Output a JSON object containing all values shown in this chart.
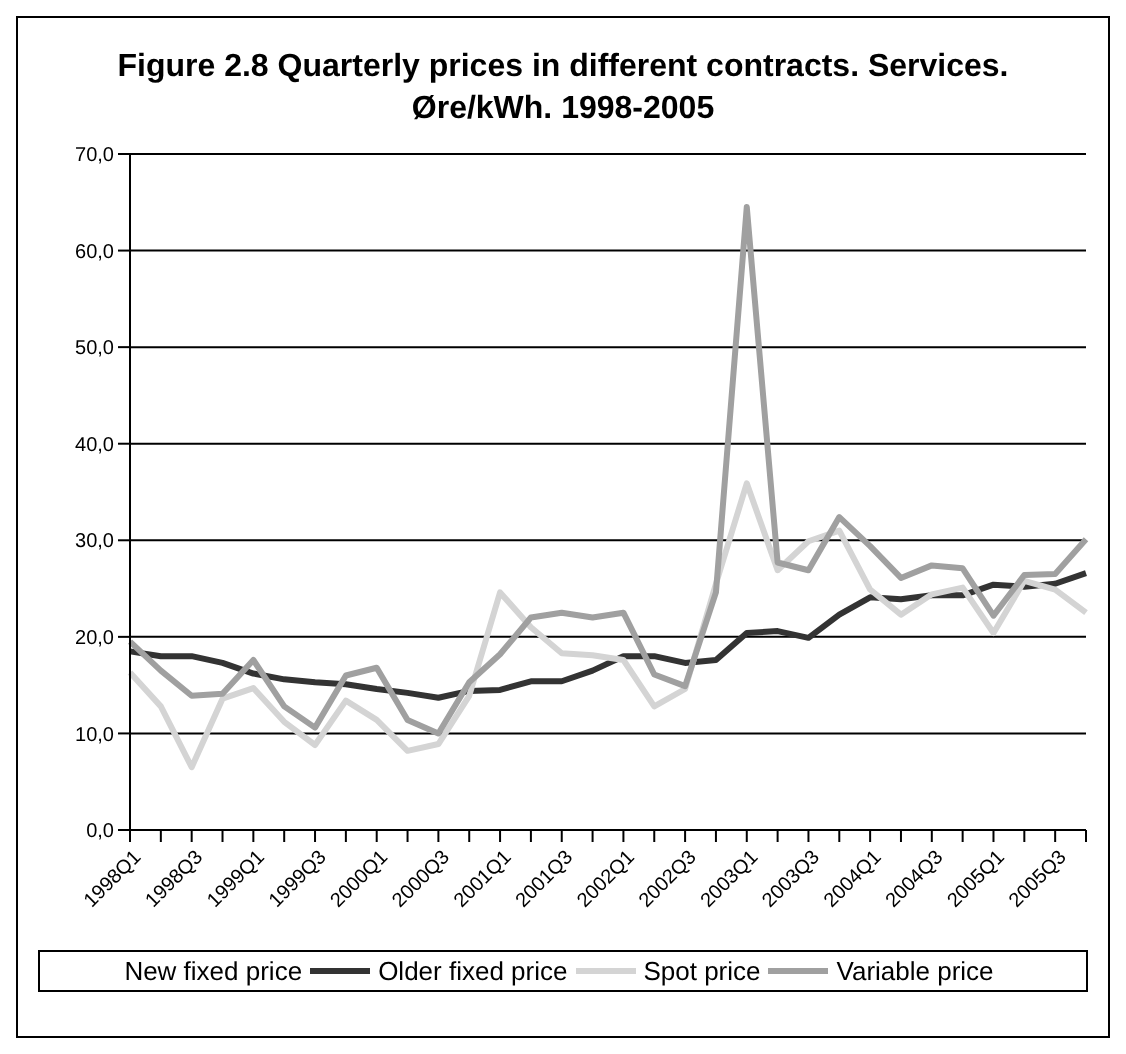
{
  "chart_data": {
    "type": "line",
    "title": "Figure 2.8 Quarterly prices in different contracts. Services. Øre/kWh. 1998-2005",
    "categories": [
      "1998Q1",
      null,
      "1998Q3",
      null,
      "1999Q1",
      null,
      "1999Q3",
      null,
      "2000Q1",
      null,
      "2000Q3",
      null,
      "2001Q1",
      null,
      "2001Q3",
      null,
      "2002Q1",
      null,
      "2002Q3",
      null,
      "2003Q1",
      null,
      "2003Q3",
      null,
      "2004Q1",
      null,
      "2004Q3",
      null,
      "2005Q1",
      null,
      "2005Q3",
      null
    ],
    "series": [
      {
        "name": "New fixed price",
        "values": [
          null,
          null,
          null,
          null,
          null,
          null,
          null,
          null,
          null,
          null,
          null,
          null,
          null,
          null,
          null,
          null,
          null,
          null,
          null,
          null,
          null,
          null,
          null,
          null,
          null,
          null,
          null,
          null,
          null,
          null,
          null,
          null
        ]
      },
      {
        "name": "Older fixed price",
        "color": "#333333",
        "values": [
          18.5,
          18.0,
          18.0,
          17.3,
          16.2,
          15.6,
          15.3,
          15.1,
          14.6,
          14.2,
          13.7,
          14.4,
          14.5,
          15.4,
          15.4,
          16.5,
          18.0,
          18.0,
          17.3,
          17.6,
          20.4,
          20.6,
          19.9,
          22.3,
          24.1,
          23.9,
          24.3,
          24.3,
          25.4,
          25.2,
          25.5,
          26.6
        ]
      },
      {
        "name": "Spot price",
        "color": "#d4d4d4",
        "values": [
          16.3,
          12.8,
          6.5,
          13.6,
          14.7,
          11.2,
          8.8,
          13.4,
          11.4,
          8.2,
          8.9,
          13.9,
          24.6,
          21.0,
          18.3,
          18.1,
          17.6,
          12.8,
          14.6,
          25.5,
          35.9,
          26.9,
          29.9,
          31.0,
          24.9,
          22.3,
          24.4,
          25.1,
          20.4,
          25.8,
          24.9,
          22.5
        ]
      },
      {
        "name": "Variable price",
        "color": "#a0a0a0",
        "values": [
          19.5,
          16.5,
          13.9,
          14.1,
          17.6,
          12.8,
          10.6,
          16.0,
          16.8,
          11.4,
          10.0,
          15.3,
          18.2,
          22.0,
          22.5,
          22.0,
          22.5,
          16.1,
          14.9,
          24.6,
          64.5,
          27.7,
          26.9,
          32.4,
          29.4,
          26.1,
          27.4,
          27.1,
          22.2,
          26.4,
          26.5,
          30.1
        ]
      }
    ],
    "ylim": [
      0,
      70
    ],
    "yticks": [
      {
        "value": 0,
        "label": "0,0"
      },
      {
        "value": 10,
        "label": "10,0"
      },
      {
        "value": 20,
        "label": "20,0"
      },
      {
        "value": 30,
        "label": "30,0"
      },
      {
        "value": 40,
        "label": "40,0"
      },
      {
        "value": 50,
        "label": "50,0"
      },
      {
        "value": 60,
        "label": "60,0"
      },
      {
        "value": 70,
        "label": "70,0"
      }
    ],
    "grid": "y",
    "legend": "bottom",
    "marker": "none",
    "line_style": "solid"
  }
}
